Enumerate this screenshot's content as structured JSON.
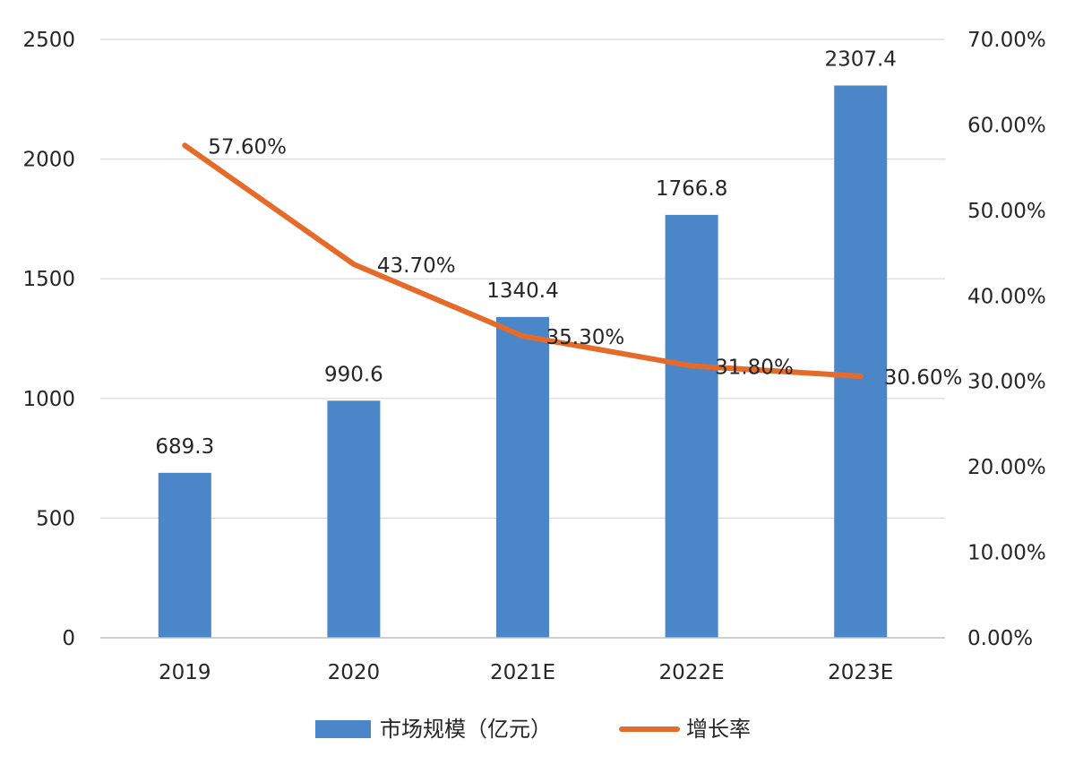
{
  "chart_data": {
    "type": "bar",
    "categories": [
      "2019",
      "2020",
      "2021E",
      "2022E",
      "2023E"
    ],
    "series": [
      {
        "name": "市场规模（亿元）",
        "type": "bar",
        "axis": "left",
        "color": "#4a86c8",
        "values": [
          689.3,
          990.6,
          1340.4,
          1766.8,
          2307.4
        ],
        "labels": [
          "689.3",
          "990.6",
          "1340.4",
          "1766.8",
          "2307.4"
        ]
      },
      {
        "name": "增长率",
        "type": "line",
        "axis": "right",
        "color": "#e56b2a",
        "values": [
          57.6,
          43.7,
          35.3,
          31.8,
          30.6
        ],
        "labels": [
          "57.60%",
          "43.70%",
          "35.30%",
          "31.80%",
          "30.60%"
        ]
      }
    ],
    "left_axis": {
      "ylim": [
        0,
        2500
      ],
      "ticks": [
        0,
        500,
        1000,
        1500,
        2000,
        2500
      ],
      "tick_labels": [
        "0",
        "500",
        "1000",
        "1500",
        "2000",
        "2500"
      ]
    },
    "right_axis": {
      "ylim": [
        0,
        70
      ],
      "ticks": [
        0,
        10,
        20,
        30,
        40,
        50,
        60,
        70
      ],
      "tick_labels": [
        "0.00%",
        "10.00%",
        "20.00%",
        "30.00%",
        "40.00%",
        "50.00%",
        "60.00%",
        "70.00%"
      ]
    },
    "grid": true,
    "legend": {
      "position": "bottom",
      "items": [
        {
          "label": "市场规模（亿元）",
          "kind": "bar",
          "color": "#4a86c8"
        },
        {
          "label": "增长率",
          "kind": "line",
          "color": "#e56b2a"
        }
      ]
    }
  }
}
